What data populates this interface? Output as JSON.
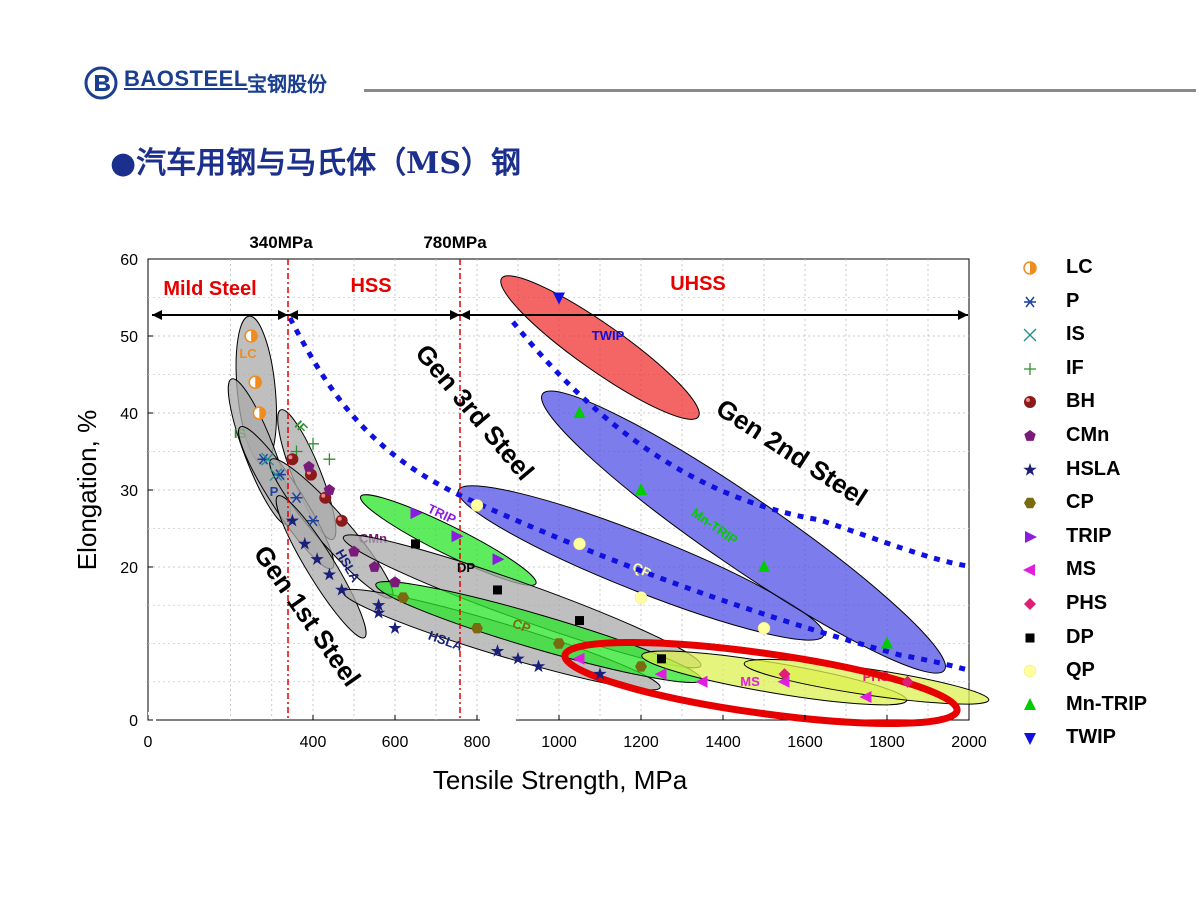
{
  "header": {
    "logo_text": "BAOSTEEL",
    "logo_cn": "宝钢股份"
  },
  "slide": {
    "title": "●汽车用钢与马氏体（MS）钢"
  },
  "chart_data": {
    "type": "scatter",
    "xlabel": "Tensile Strength, MPa",
    "ylabel": "Elongation, %",
    "xlim": [
      0,
      2000
    ],
    "ylim": [
      0,
      60
    ],
    "x_ticks": [
      "0",
      "400",
      "600",
      "800",
      "1000",
      "1200",
      "1400",
      "1600",
      "1800",
      "2000"
    ],
    "y_ticks": [
      "0",
      "20",
      "30",
      "40",
      "50",
      "60"
    ],
    "threshold_labels": [
      "340MPa",
      "780MPa"
    ],
    "region_labels": {
      "mild": "Mild Steel",
      "hss": "HSS",
      "uhss": "UHSS"
    },
    "generation_labels": [
      "Gen 1st Steel",
      "Gen 3rd Steel",
      "Gen 2nd Steel"
    ],
    "region_names": {
      "LC": "LC",
      "IS": "IS",
      "IF": "IF",
      "P": "P",
      "CMn": "CMn",
      "HSLA1": "HSLA",
      "HSLA2": "HSLA",
      "TRIP": "TRIP",
      "DP": "DP",
      "CP": "CP",
      "QP": "QP",
      "TWIP": "TWIP",
      "MnTRIP": "Mn-TRIP",
      "MS": "MS",
      "PHS": "PHS"
    },
    "series": [
      {
        "name": "LC",
        "marker": "half-circle",
        "color": "#f08c1e",
        "points": [
          [
            250,
            50
          ],
          [
            260,
            44
          ],
          [
            270,
            40
          ]
        ]
      },
      {
        "name": "P",
        "marker": "asterisk",
        "color": "#1f3fa0",
        "points": [
          [
            280,
            34
          ],
          [
            320,
            32
          ],
          [
            360,
            29
          ],
          [
            400,
            26
          ]
        ]
      },
      {
        "name": "IS",
        "marker": "x",
        "color": "#1f8f8f",
        "points": [
          [
            290,
            34
          ],
          [
            310,
            32
          ]
        ]
      },
      {
        "name": "IF",
        "marker": "plus",
        "color": "#2f8f2f",
        "points": [
          [
            360,
            35
          ],
          [
            400,
            36
          ],
          [
            440,
            34
          ]
        ]
      },
      {
        "name": "BH",
        "marker": "ball",
        "color": "#8b1a1a",
        "points": [
          [
            350,
            34
          ],
          [
            395,
            32
          ],
          [
            430,
            29
          ],
          [
            470,
            26
          ]
        ]
      },
      {
        "name": "CMn",
        "marker": "pentagon",
        "color": "#7a1a7a",
        "points": [
          [
            390,
            33
          ],
          [
            440,
            30
          ],
          [
            500,
            22
          ],
          [
            550,
            20
          ],
          [
            600,
            18
          ]
        ]
      },
      {
        "name": "HSLA",
        "marker": "star",
        "color": "#1a1f7a",
        "points": [
          [
            350,
            26
          ],
          [
            380,
            23
          ],
          [
            410,
            21
          ],
          [
            440,
            19
          ],
          [
            470,
            17
          ],
          [
            560,
            15
          ],
          [
            560,
            14
          ],
          [
            600,
            12
          ],
          [
            850,
            9
          ],
          [
            900,
            8
          ],
          [
            950,
            7
          ],
          [
            1100,
            6
          ]
        ]
      },
      {
        "name": "CP",
        "marker": "hexagon",
        "color": "#7a6a10",
        "points": [
          [
            620,
            16
          ],
          [
            800,
            12
          ],
          [
            1000,
            10
          ],
          [
            1200,
            7
          ]
        ]
      },
      {
        "name": "TRIP",
        "marker": "tri-right",
        "color": "#8a1ee0",
        "points": [
          [
            650,
            27
          ],
          [
            750,
            24
          ],
          [
            850,
            21
          ]
        ]
      },
      {
        "name": "MS",
        "marker": "tri-left",
        "color": "#e01ee0",
        "points": [
          [
            1050,
            8
          ],
          [
            1250,
            6
          ],
          [
            1350,
            5
          ],
          [
            1550,
            5
          ],
          [
            1750,
            3
          ]
        ]
      },
      {
        "name": "PHS",
        "marker": "diamond",
        "color": "#e01e78",
        "points": [
          [
            1550,
            6
          ],
          [
            1850,
            5
          ]
        ]
      },
      {
        "name": "DP",
        "marker": "square",
        "color": "#000000",
        "points": [
          [
            650,
            23
          ],
          [
            850,
            17
          ],
          [
            1050,
            13
          ],
          [
            1250,
            8
          ]
        ]
      },
      {
        "name": "QP",
        "marker": "circle",
        "color": "#ffffa0",
        "points": [
          [
            800,
            28
          ],
          [
            1050,
            23
          ],
          [
            1200,
            16
          ],
          [
            1500,
            12
          ]
        ]
      },
      {
        "name": "Mn-TRIP",
        "marker": "tri-up",
        "color": "#00cc00",
        "points": [
          [
            1050,
            40
          ],
          [
            1200,
            30
          ],
          [
            1500,
            20
          ],
          [
            1800,
            10
          ]
        ]
      },
      {
        "name": "TWIP",
        "marker": "tri-down",
        "color": "#1010e0",
        "points": [
          [
            1000,
            55
          ]
        ]
      }
    ]
  }
}
